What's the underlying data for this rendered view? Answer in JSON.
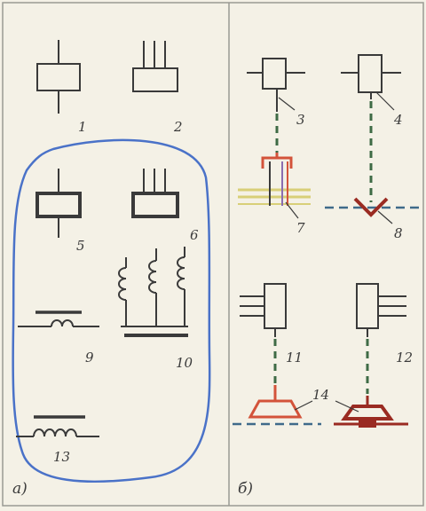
{
  "panels": {
    "left": {
      "label": "а)"
    },
    "right": {
      "label": "б)"
    }
  },
  "numbers": {
    "n1": "1",
    "n2": "2",
    "n3": "3",
    "n4": "4",
    "n5": "5",
    "n6": "6",
    "n7": "7",
    "n8": "8",
    "n9": "9",
    "n10": "10",
    "n11": "11",
    "n12": "12",
    "n13": "13",
    "n14": "14"
  },
  "colors": {
    "line": "#3a3a3a",
    "outline": "#4a72c8",
    "red": "#d3533a",
    "dark_red": "#9a2b22",
    "green_dash": "#3e6b45",
    "blue_dash": "#3f6a8a",
    "yellow": "#d8cf78",
    "purple": "#8a6db0",
    "paper": "#f4f1e6"
  }
}
